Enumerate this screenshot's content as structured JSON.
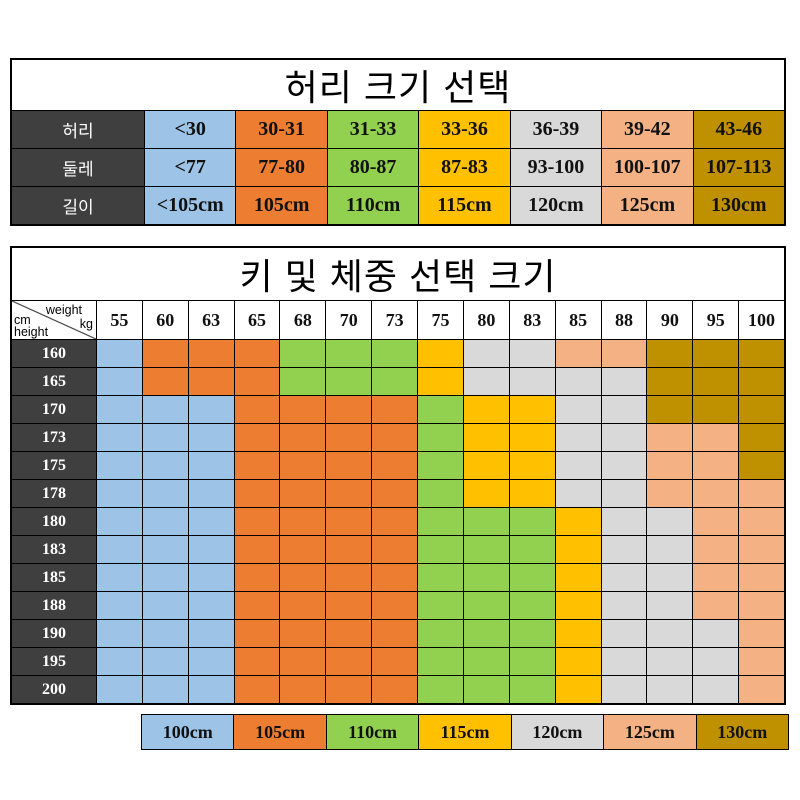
{
  "chart_data": [
    {
      "type": "table",
      "title": "허리 크기 선택",
      "row_headers": [
        "허리",
        "둘레",
        "길이"
      ],
      "rows": [
        [
          "<30",
          "30-31",
          "31-33",
          "33-36",
          "36-39",
          "39-42",
          "43-46"
        ],
        [
          "<77",
          "77-80",
          "80-87",
          "87-83",
          "93-100",
          "100-107",
          "107-113"
        ],
        [
          "<105cm",
          "105cm",
          "110cm",
          "115cm",
          "120cm",
          "125cm",
          "130cm"
        ]
      ],
      "column_colors": [
        "#9DC3E6",
        "#ED7D31",
        "#92D050",
        "#FFC000",
        "#D9D9D9",
        "#F4B183",
        "#BF9000"
      ],
      "header_bg": "#3f3f3f",
      "header_text_color": "#ffffff"
    },
    {
      "type": "heatmap",
      "title": "키 및 체중 선택 크기",
      "xlabel": "weight kg",
      "ylabel": "cm height",
      "corner": {
        "weight": "weight",
        "kg": "kg",
        "cm": "cm",
        "height": "height"
      },
      "x": [
        "55",
        "60",
        "63",
        "65",
        "68",
        "70",
        "73",
        "75",
        "80",
        "83",
        "85",
        "88",
        "90",
        "95",
        "100"
      ],
      "y": [
        "160",
        "165",
        "170",
        "173",
        "175",
        "178",
        "180",
        "183",
        "185",
        "188",
        "190",
        "195",
        "200"
      ],
      "values": [
        [
          "100",
          "105",
          "105",
          "105",
          "110",
          "110",
          "110",
          "115",
          "120",
          "120",
          "125",
          "125",
          "130",
          "130",
          "130"
        ],
        [
          "100",
          "105",
          "105",
          "105",
          "110",
          "110",
          "110",
          "115",
          "120",
          "120",
          "120",
          "120",
          "130",
          "130",
          "130"
        ],
        [
          "100",
          "100",
          "100",
          "105",
          "105",
          "105",
          "105",
          "110",
          "115",
          "115",
          "120",
          "120",
          "130",
          "130",
          "130"
        ],
        [
          "100",
          "100",
          "100",
          "105",
          "105",
          "105",
          "105",
          "110",
          "115",
          "115",
          "120",
          "120",
          "125",
          "125",
          "130"
        ],
        [
          "100",
          "100",
          "100",
          "105",
          "105",
          "105",
          "105",
          "110",
          "115",
          "115",
          "120",
          "120",
          "125",
          "125",
          "130"
        ],
        [
          "100",
          "100",
          "100",
          "105",
          "105",
          "105",
          "105",
          "110",
          "115",
          "115",
          "120",
          "120",
          "125",
          "125",
          "125"
        ],
        [
          "100",
          "100",
          "100",
          "105",
          "105",
          "105",
          "105",
          "110",
          "110",
          "110",
          "115",
          "120",
          "120",
          "125",
          "125"
        ],
        [
          "100",
          "100",
          "100",
          "105",
          "105",
          "105",
          "105",
          "110",
          "110",
          "110",
          "115",
          "120",
          "120",
          "125",
          "125"
        ],
        [
          "100",
          "100",
          "100",
          "105",
          "105",
          "105",
          "105",
          "110",
          "110",
          "110",
          "115",
          "120",
          "120",
          "125",
          "125"
        ],
        [
          "100",
          "100",
          "100",
          "105",
          "105",
          "105",
          "105",
          "110",
          "110",
          "110",
          "115",
          "120",
          "120",
          "125",
          "125"
        ],
        [
          "100",
          "100",
          "100",
          "105",
          "105",
          "105",
          "105",
          "110",
          "110",
          "110",
          "115",
          "120",
          "120",
          "120",
          "125"
        ],
        [
          "100",
          "100",
          "100",
          "105",
          "105",
          "105",
          "105",
          "110",
          "110",
          "110",
          "115",
          "120",
          "120",
          "120",
          "125"
        ],
        [
          "100",
          "100",
          "100",
          "105",
          "105",
          "105",
          "105",
          "110",
          "110",
          "110",
          "115",
          "120",
          "120",
          "120",
          "125"
        ]
      ],
      "size_colors": {
        "100": "#9DC3E6",
        "105": "#ED7D31",
        "110": "#92D050",
        "115": "#FFC000",
        "120": "#D9D9D9",
        "125": "#F4B183",
        "130": "#BF9000"
      },
      "legend": [
        {
          "label": "100cm",
          "color": "#9DC3E6"
        },
        {
          "label": "105cm",
          "color": "#ED7D31"
        },
        {
          "label": "110cm",
          "color": "#92D050"
        },
        {
          "label": "115cm",
          "color": "#FFC000"
        },
        {
          "label": "120cm",
          "color": "#D9D9D9"
        },
        {
          "label": "125cm",
          "color": "#F4B183"
        },
        {
          "label": "130cm",
          "color": "#BF9000"
        }
      ],
      "legend_position": "bottom",
      "header_bg": "#3f3f3f",
      "header_text_color": "#ffffff"
    }
  ]
}
